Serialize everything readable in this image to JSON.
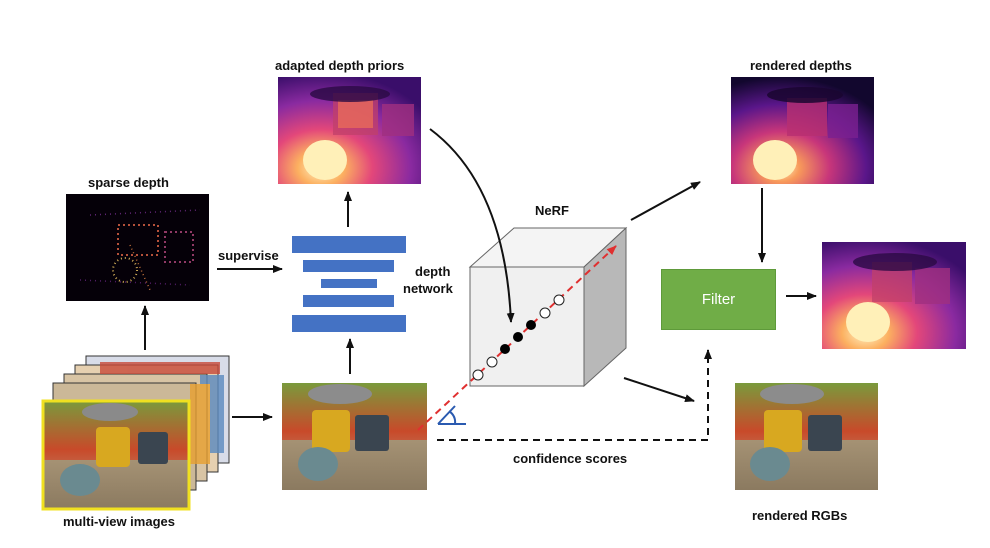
{
  "labels": {
    "sparse_depth": "sparse depth",
    "adapted_depth_priors": "adapted depth priors",
    "supervise": "supervise",
    "depth_network_line1": "depth",
    "depth_network_line2": "network",
    "nerf": "NeRF",
    "rendered_depths": "rendered depths",
    "filter": "Filter",
    "confidence_scores": "confidence scores",
    "rendered_rgbs": "rendered RGBs",
    "multi_view_images": "multi-view images"
  },
  "colors": {
    "network_bar": "#4472c4",
    "filter_box": "#70ad47",
    "ray": "#e03030",
    "highlight_frame": "#f0e020"
  }
}
